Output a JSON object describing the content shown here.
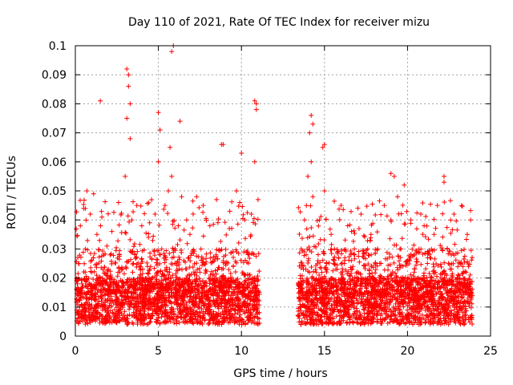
{
  "chart_data": {
    "type": "scatter",
    "title": "Day 110 of 2021, Rate Of TEC Index for receiver mizu",
    "xlabel": "GPS time / hours",
    "ylabel": "ROTI / TECUs",
    "xlim": [
      0,
      25
    ],
    "ylim": [
      0,
      0.1
    ],
    "xticks": [
      0,
      5,
      10,
      15,
      20,
      25
    ],
    "yticks": [
      0,
      0.01,
      0.02,
      0.03,
      0.04,
      0.05,
      0.06,
      0.07,
      0.08,
      0.09,
      0.1
    ],
    "xtick_labels": [
      "0",
      "5",
      "10",
      "15",
      "20",
      "25"
    ],
    "ytick_labels": [
      "0",
      "0.01",
      "0.02",
      "0.03",
      "0.04",
      "0.05",
      "0.06",
      "0.07",
      "0.08",
      "0.09",
      "0.1"
    ],
    "grid": true,
    "marker": "+",
    "color": "#ff0000",
    "data_gap_hours": [
      11.1,
      13.4
    ],
    "series": [
      {
        "x": [
          0.1,
          0.2,
          0.3,
          0.4,
          0.5,
          0.6,
          0.7,
          0.8,
          0.9,
          1.0,
          1.1,
          1.2,
          1.3,
          1.5,
          1.6,
          1.7,
          1.9,
          2.0,
          2.2,
          2.4,
          2.6,
          2.8,
          3.0,
          3.1,
          3.2,
          3.3,
          3.4,
          3.5,
          3.7,
          3.9,
          4.0,
          4.2,
          4.4,
          4.6,
          4.8,
          5.0,
          5.1,
          5.2,
          5.4,
          5.6,
          5.7,
          5.8,
          6.0,
          6.2,
          6.4,
          6.5,
          6.7,
          6.9,
          7.1,
          7.3,
          7.5,
          7.7,
          7.9,
          8.1,
          8.3,
          8.5,
          8.7,
          8.9,
          9.1,
          9.3,
          9.5,
          9.7,
          9.9,
          10.0,
          10.2,
          10.4,
          10.6,
          10.7,
          10.8,
          10.9,
          11.0,
          13.5,
          13.6,
          13.8,
          14.0,
          14.1,
          14.2,
          14.3,
          14.5,
          14.7,
          14.9,
          15.0,
          15.2,
          15.4,
          15.6,
          15.8,
          16.0,
          16.2,
          16.4,
          16.6,
          16.8,
          17.0,
          17.2,
          17.4,
          17.6,
          17.8,
          18.0,
          18.2,
          18.4,
          18.6,
          18.8,
          19.0,
          19.2,
          19.4,
          19.6,
          19.8,
          20.0,
          20.2,
          20.4,
          20.6,
          20.8,
          21.0,
          21.2,
          21.4,
          21.6,
          21.8,
          22.0,
          22.2,
          22.4,
          22.6,
          22.8,
          23.0,
          23.2,
          23.4,
          23.6,
          23.8,
          1.5,
          3.1,
          3.2,
          3.3,
          5.0,
          5.8,
          5.9,
          6.3,
          8.8,
          10.8,
          10.9,
          14.2,
          14.3,
          15.0,
          19.0,
          22.2
        ],
        "y": [
          0.012,
          0.025,
          0.038,
          0.018,
          0.044,
          0.03,
          0.05,
          0.015,
          0.042,
          0.022,
          0.049,
          0.01,
          0.035,
          0.02,
          0.041,
          0.011,
          0.031,
          0.016,
          0.036,
          0.012,
          0.046,
          0.014,
          0.055,
          0.075,
          0.09,
          0.068,
          0.04,
          0.025,
          0.045,
          0.018,
          0.038,
          0.012,
          0.034,
          0.02,
          0.042,
          0.06,
          0.071,
          0.03,
          0.045,
          0.05,
          0.065,
          0.055,
          0.025,
          0.038,
          0.048,
          0.017,
          0.04,
          0.035,
          0.013,
          0.048,
          0.022,
          0.045,
          0.015,
          0.038,
          0.012,
          0.047,
          0.02,
          0.066,
          0.018,
          0.043,
          0.014,
          0.05,
          0.046,
          0.063,
          0.04,
          0.028,
          0.042,
          0.012,
          0.06,
          0.078,
          0.047,
          0.015,
          0.03,
          0.04,
          0.055,
          0.07,
          0.06,
          0.048,
          0.022,
          0.04,
          0.065,
          0.05,
          0.018,
          0.035,
          0.03,
          0.013,
          0.045,
          0.025,
          0.038,
          0.012,
          0.03,
          0.02,
          0.042,
          0.015,
          0.03,
          0.035,
          0.01,
          0.03,
          0.025,
          0.045,
          0.02,
          0.04,
          0.055,
          0.048,
          0.03,
          0.052,
          0.015,
          0.04,
          0.028,
          0.012,
          0.042,
          0.038,
          0.025,
          0.015,
          0.035,
          0.045,
          0.02,
          0.053,
          0.03,
          0.012,
          0.042,
          0.02,
          0.025,
          0.015,
          0.035,
          0.04,
          0.081,
          0.092,
          0.086,
          0.08,
          0.077,
          0.098,
          0.1,
          0.074,
          0.066,
          0.081,
          0.08,
          0.076,
          0.073,
          0.066,
          0.056,
          0.055
        ]
      }
    ]
  }
}
